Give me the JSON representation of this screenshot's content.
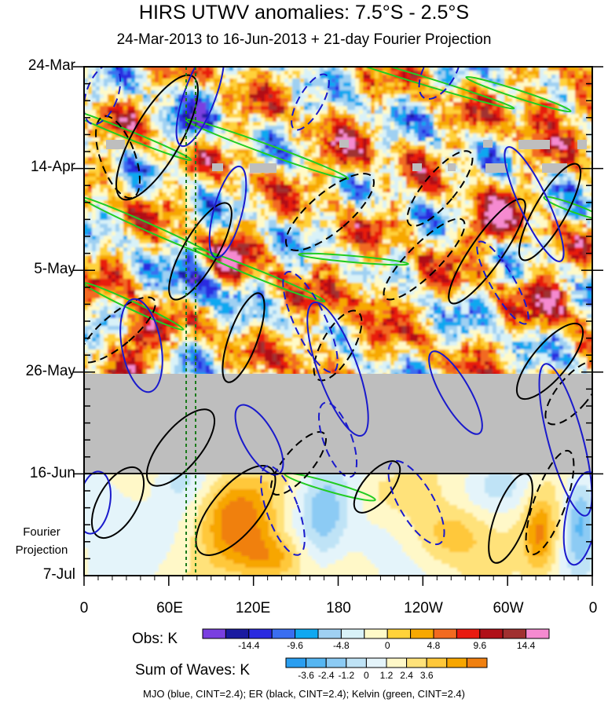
{
  "chart_data": {
    "type": "heatmap",
    "title": "HIRS UTWV anomalies: 7.5°S - 2.5°S",
    "subtitle": "24-Mar-2013 to 16-Jun-2013 + 21-day Fourier Projection",
    "y_tick_labels": [
      "24-Mar",
      "14-Apr",
      "5-May",
      "26-May",
      "16-Jun",
      "7-Jul"
    ],
    "y_extra_label": "Fourier\nProjection",
    "x_tick_labels": [
      "0",
      "60E",
      "120E",
      "180",
      "120W",
      "60W",
      "0"
    ],
    "x_range_deg_east": [
      0,
      360
    ],
    "missing_data_period": [
      "27-May",
      "16-Jun"
    ],
    "reference_longitudes_deg_east": [
      72,
      79
    ],
    "obs_colorbar": {
      "title": "Obs: K",
      "ticks": [
        "-14.4",
        "-9.6",
        "-4.8",
        "0",
        "4.8",
        "9.6",
        "14.4"
      ],
      "colors": [
        "#7a3fe0",
        "#1a1aa0",
        "#2a2ae0",
        "#3a6ef0",
        "#10a8f0",
        "#9fd0f2",
        "#d9f2f8",
        "#fffac8",
        "#ffd23a",
        "#f7a800",
        "#f26a20",
        "#e81a10",
        "#b01018",
        "#a03030",
        "#f58ad0"
      ]
    },
    "waves_colorbar": {
      "title": "Sum of Waves: K",
      "ticks": [
        "-3.6",
        "-2.4",
        "-1.2",
        "0",
        "1.2",
        "2.4",
        "3.6"
      ],
      "colors": [
        "#2a9ef0",
        "#56b6f2",
        "#8ccbf4",
        "#bfe3f6",
        "#e4f4fa",
        "#fff8c8",
        "#ffe27a",
        "#ffc83a",
        "#f7a600",
        "#f08010"
      ]
    },
    "footer": "MJO (blue, CINT=2.4); ER (black, CINT=2.4); Kelvin (green, CINT=2.4)",
    "contour_colors": {
      "MJO": "#1a1acc",
      "ER": "#000000",
      "Kelvin": "#22cc22"
    }
  }
}
